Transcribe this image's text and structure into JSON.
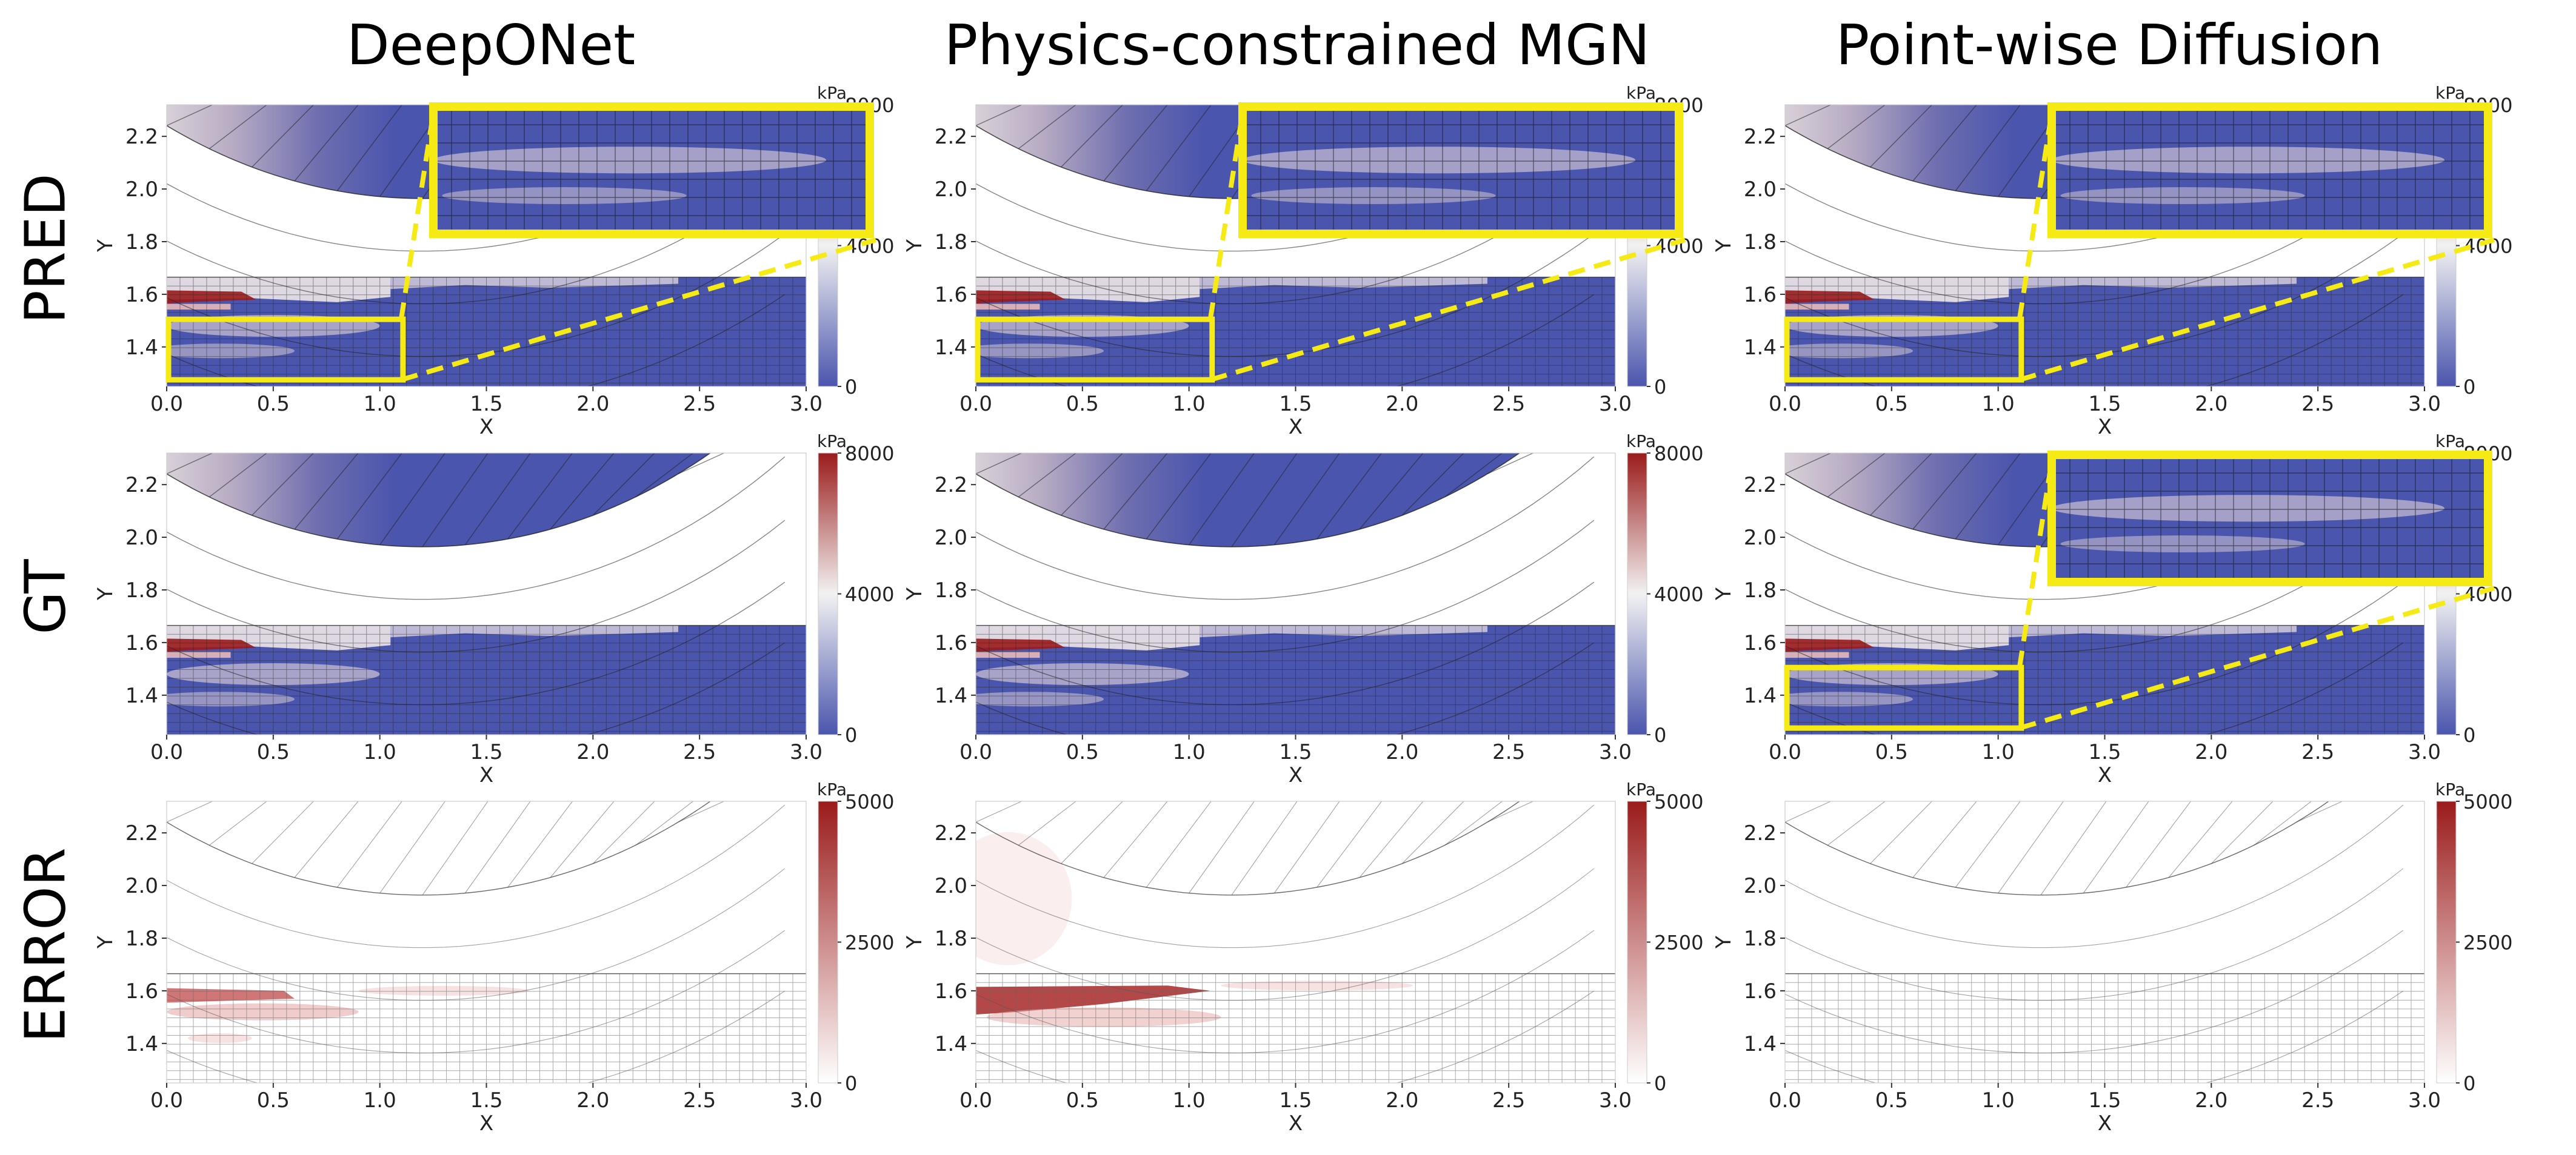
{
  "columns": [
    {
      "title": "DeepONet"
    },
    {
      "title": "Physics-constrained MGN"
    },
    {
      "title": "Point-wise Diffusion"
    }
  ],
  "rows": [
    {
      "label": "PRED"
    },
    {
      "label": "GT"
    },
    {
      "label": "ERROR"
    }
  ],
  "axes": {
    "xlabel": "X",
    "ylabel": "Y",
    "x_ticks": [
      "0.0",
      "0.5",
      "1.0",
      "1.5",
      "2.0",
      "2.5",
      "3.0"
    ],
    "y_ticks": [
      "1.4",
      "1.6",
      "1.8",
      "2.0",
      "2.2"
    ],
    "xlim": [
      0.0,
      3.0
    ],
    "ylim": [
      1.25,
      2.32
    ]
  },
  "colorbars": {
    "stress": {
      "unit": "kPa",
      "min": 0,
      "max": 8000,
      "ticks": [
        "0",
        "4000",
        "8000"
      ]
    },
    "error": {
      "unit": "kPa",
      "min": 0,
      "max": 5000,
      "ticks": [
        "0",
        "2500",
        "5000"
      ]
    }
  },
  "colors": {
    "low": "#4a55ad",
    "mid": "#f2f2f2",
    "high": "#9b1b1b",
    "error_low": "#ffffff",
    "error_high": "#9b1b1b",
    "highlight": "#f5ea14",
    "mesh": "#222222"
  },
  "panels": [
    {
      "row": "PRED",
      "column": "DeepONet",
      "field": "stress",
      "zoom_inset": true
    },
    {
      "row": "PRED",
      "column": "Physics-constrained MGN",
      "field": "stress",
      "zoom_inset": true
    },
    {
      "row": "PRED",
      "column": "Point-wise Diffusion",
      "field": "stress",
      "zoom_inset": true
    },
    {
      "row": "GT",
      "column": "DeepONet",
      "field": "stress",
      "zoom_inset": false
    },
    {
      "row": "GT",
      "column": "Physics-constrained MGN",
      "field": "stress",
      "zoom_inset": false
    },
    {
      "row": "GT",
      "column": "Point-wise Diffusion",
      "field": "stress",
      "zoom_inset": true
    },
    {
      "row": "ERROR",
      "column": "DeepONet",
      "field": "error",
      "error_level": "moderate",
      "zoom_inset": false
    },
    {
      "row": "ERROR",
      "column": "Physics-constrained MGN",
      "field": "error",
      "error_level": "high",
      "zoom_inset": false
    },
    {
      "row": "ERROR",
      "column": "Point-wise Diffusion",
      "field": "error",
      "error_level": "none",
      "zoom_inset": false
    }
  ]
}
